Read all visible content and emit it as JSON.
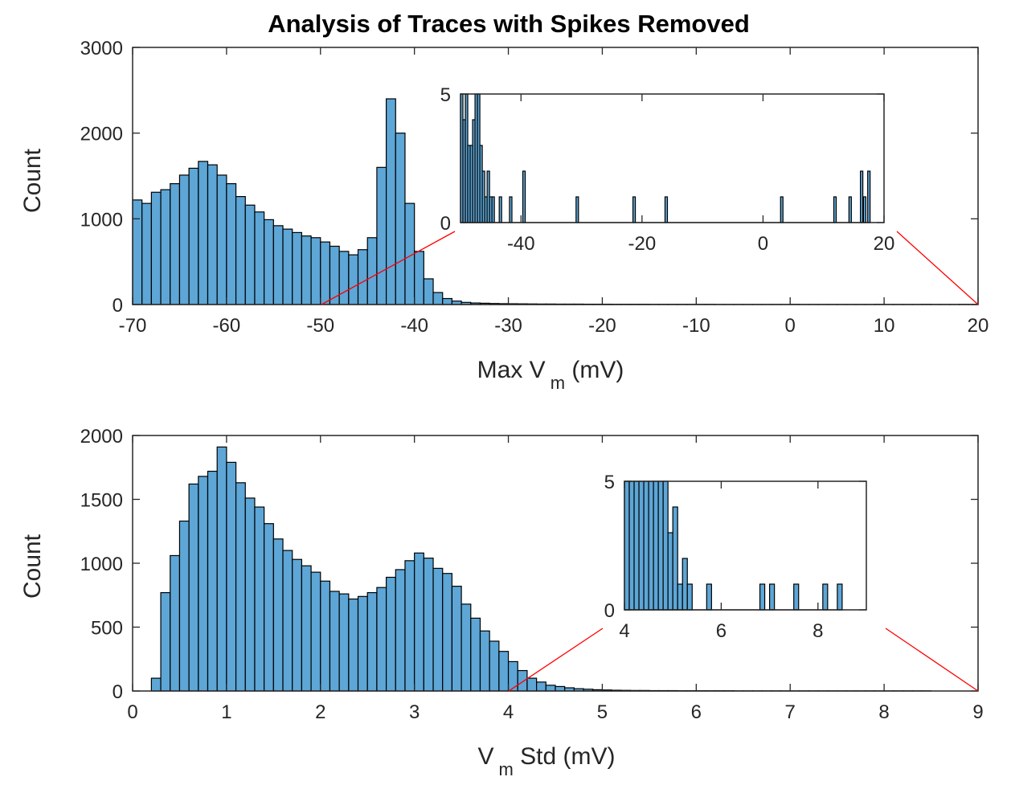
{
  "colors": {
    "bar": "#5da6d6",
    "edge": "#000000",
    "zoom_line": "#ff0000",
    "axis": "#262626"
  },
  "chart_data": [
    {
      "type": "bar",
      "title": "Analysis of Traces with Spikes Removed",
      "xlabel_main": "Max V",
      "xlabel_sub": "m",
      "xlabel_units": " (mV)",
      "ylabel": "Count",
      "xlim": [
        -70,
        20
      ],
      "ylim": [
        0,
        3000
      ],
      "xticks": [
        "-70",
        "-60",
        "-50",
        "-40",
        "-30",
        "-20",
        "-10",
        "0",
        "10",
        "20"
      ],
      "yticks": [
        "0",
        "1000",
        "2000",
        "3000"
      ],
      "grid": false,
      "bin_start": -70,
      "bin_width": 1.0,
      "values": [
        1220,
        1180,
        1310,
        1340,
        1410,
        1510,
        1590,
        1670,
        1630,
        1510,
        1410,
        1260,
        1160,
        1080,
        990,
        920,
        880,
        840,
        800,
        780,
        730,
        680,
        620,
        580,
        640,
        780,
        1600,
        2400,
        2000,
        1180,
        620,
        300,
        140,
        70,
        40,
        25,
        18,
        15,
        12,
        10,
        9,
        8,
        7,
        6,
        6,
        5,
        5,
        5,
        4,
        4,
        4,
        3,
        3,
        3,
        3,
        2,
        2,
        2,
        2,
        2,
        2,
        2,
        1,
        1,
        1,
        1,
        1,
        1,
        1,
        1,
        2,
        1,
        1,
        1,
        1,
        1,
        1,
        1,
        1,
        2,
        1,
        1,
        1,
        1,
        2,
        1,
        1,
        1,
        2,
        1
      ],
      "inset": {
        "xlim": [
          -50,
          20
        ],
        "ylim": [
          0,
          5
        ],
        "xticks": [
          "-40",
          "-20",
          "0",
          "20"
        ],
        "yticks": [
          "0",
          "5"
        ],
        "bins": [
          [
            -50,
            5
          ],
          [
            -49.6,
            4
          ],
          [
            -49.2,
            5
          ],
          [
            -48.8,
            3
          ],
          [
            -48.4,
            3
          ],
          [
            -48.0,
            4
          ],
          [
            -47.6,
            5
          ],
          [
            -47.2,
            5
          ],
          [
            -46.8,
            3
          ],
          [
            -46.4,
            2
          ],
          [
            -46.0,
            1
          ],
          [
            -45.6,
            2
          ],
          [
            -45.2,
            1
          ],
          [
            -44.8,
            1
          ],
          [
            -43.6,
            1
          ],
          [
            -41.9,
            1
          ],
          [
            -39.7,
            2
          ],
          [
            -30.9,
            1
          ],
          [
            -21.5,
            1
          ],
          [
            -16.2,
            1
          ],
          [
            2.9,
            1
          ],
          [
            11.7,
            1
          ],
          [
            14.2,
            1
          ],
          [
            16.1,
            2
          ],
          [
            16.6,
            1
          ],
          [
            17.3,
            2
          ]
        ]
      }
    },
    {
      "type": "bar",
      "xlabel_main": "V",
      "xlabel_sub": "m",
      "xlabel_units": " Std (mV)",
      "ylabel": "Count",
      "xlim": [
        0,
        9
      ],
      "ylim": [
        0,
        2000
      ],
      "xticks": [
        "0",
        "1",
        "2",
        "3",
        "4",
        "5",
        "6",
        "7",
        "8",
        "9"
      ],
      "yticks": [
        "0",
        "500",
        "1000",
        "1500",
        "2000"
      ],
      "grid": false,
      "bin_start": 0.2,
      "bin_width": 0.1,
      "values": [
        100,
        770,
        1060,
        1330,
        1620,
        1680,
        1720,
        1910,
        1790,
        1630,
        1510,
        1440,
        1310,
        1190,
        1100,
        1030,
        980,
        930,
        860,
        780,
        760,
        720,
        740,
        770,
        810,
        890,
        950,
        1020,
        1080,
        1040,
        960,
        920,
        820,
        680,
        570,
        470,
        390,
        310,
        230,
        160,
        100,
        70,
        45,
        35,
        25,
        18,
        14,
        10,
        8,
        6,
        5,
        4,
        4,
        3,
        3,
        3,
        2,
        2,
        2,
        2,
        2,
        2,
        1,
        1,
        1,
        1,
        1,
        1,
        1,
        1,
        1,
        1,
        1,
        1,
        1,
        1,
        1,
        1,
        1,
        1,
        1,
        1,
        1
      ],
      "inset": {
        "xlim": [
          4,
          9
        ],
        "ylim": [
          0,
          5
        ],
        "xticks": [
          "4",
          "6",
          "8"
        ],
        "yticks": [
          "0",
          "5"
        ],
        "bins": [
          [
            4.0,
            5
          ],
          [
            4.1,
            5
          ],
          [
            4.2,
            5
          ],
          [
            4.3,
            5
          ],
          [
            4.4,
            5
          ],
          [
            4.5,
            5
          ],
          [
            4.6,
            5
          ],
          [
            4.7,
            5
          ],
          [
            4.8,
            5
          ],
          [
            4.9,
            3
          ],
          [
            5.0,
            4
          ],
          [
            5.1,
            1
          ],
          [
            5.2,
            2
          ],
          [
            5.3,
            1
          ],
          [
            5.7,
            1
          ],
          [
            6.8,
            1
          ],
          [
            7.0,
            1
          ],
          [
            7.5,
            1
          ],
          [
            8.1,
            1
          ],
          [
            8.4,
            1
          ]
        ]
      }
    }
  ]
}
